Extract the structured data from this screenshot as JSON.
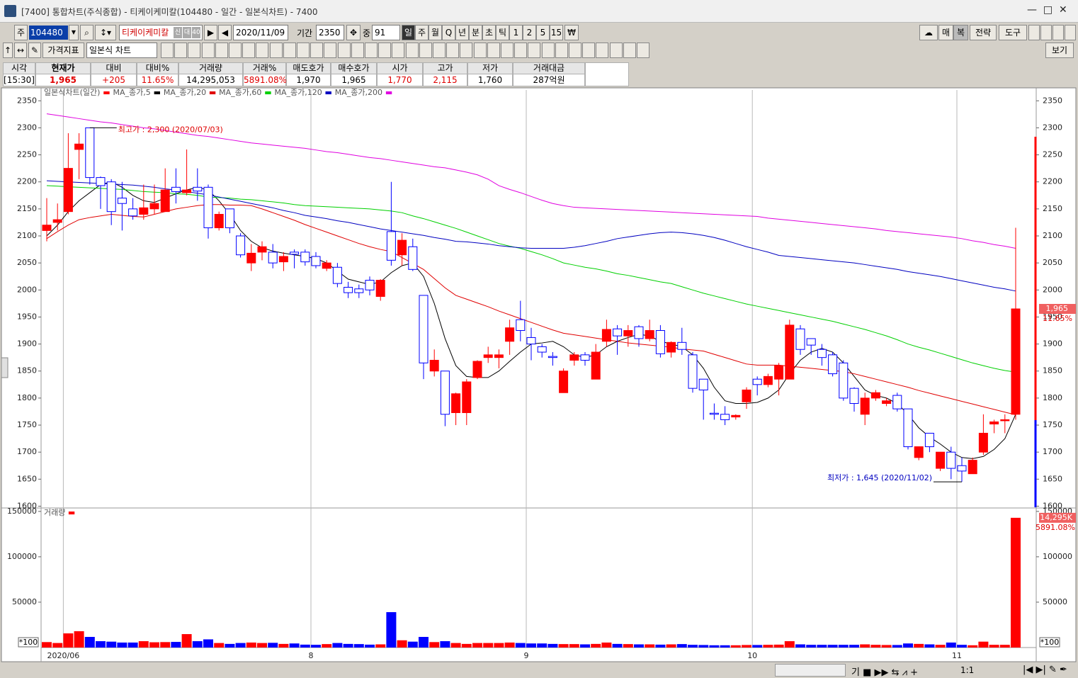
{
  "window": {
    "title": "[7400] 통합차트(주식종합) - 티케이케미칼(104480 - 일간 - 일본식차트) - 7400"
  },
  "toolbar": {
    "market": "주",
    "code": "104480",
    "name": "티케이케미칼",
    "badges": [
      "신",
      "대",
      "40"
    ],
    "date": "2020/11/09",
    "period_label": "기간",
    "period": "2350",
    "count_label": "중",
    "count": "91",
    "periods": [
      "일",
      "주",
      "월",
      "Q",
      "년",
      "분",
      "초",
      "틱",
      "1",
      "2",
      "5",
      "15"
    ],
    "right_buttons": [
      "매",
      "복",
      "전략",
      "도구"
    ],
    "indicator": "가격지표",
    "chart_style": "일본식 차트",
    "view": "보기",
    "zoom": "1:1"
  },
  "quote": {
    "headers": [
      "시각",
      "현재가",
      "대비",
      "대비%",
      "거래량",
      "거래%",
      "매도호가",
      "매수호가",
      "시가",
      "고가",
      "저가",
      "거래대금"
    ],
    "values": [
      "[15:30]",
      "1,965",
      "+205",
      "11.65%",
      "14,295,053",
      "5891.08%",
      "1,970",
      "1,965",
      "1,770",
      "2,115",
      "1,760",
      "287억원"
    ]
  },
  "chart_data": {
    "type": "candlestick",
    "title": "일본식차트(일간)",
    "categories": [
      null,
      null,
      "2020/06",
      null,
      null,
      null,
      null,
      null,
      null,
      null,
      null,
      null,
      null,
      null,
      null,
      null,
      null,
      null,
      null,
      null,
      null,
      null,
      null,
      null,
      null,
      "8",
      null,
      null,
      null,
      null,
      null,
      null,
      null,
      null,
      null,
      null,
      null,
      null,
      null,
      null,
      null,
      null,
      null,
      null,
      null,
      "9",
      null,
      null,
      null,
      null,
      null,
      null,
      null,
      null,
      null,
      null,
      null,
      null,
      null,
      null,
      null,
      null,
      null,
      null,
      null,
      null,
      "10",
      null,
      null,
      null,
      null,
      null,
      null,
      null,
      null,
      null,
      null,
      null,
      null,
      null,
      null,
      null,
      null,
      null,
      null,
      "11",
      null,
      null,
      null,
      null,
      null
    ],
    "open": [
      2110,
      2125,
      2145,
      2260,
      2300,
      2208,
      2200,
      2170,
      2150,
      2140,
      2150,
      2145,
      2190,
      2180,
      2190,
      2190,
      2115,
      2150,
      2100,
      2050,
      2070,
      2070,
      2052,
      2070,
      2070,
      2062,
      2040,
      2042,
      2005,
      2002,
      2018,
      1988,
      2108,
      2065,
      2080,
      1990,
      1850,
      1850,
      1773,
      1773,
      1838,
      1875,
      1875,
      1905,
      1945,
      1912,
      1895,
      1877,
      1810,
      1870,
      1880,
      1835,
      1905,
      1928,
      1915,
      1932,
      1910,
      1925,
      1885,
      1903,
      1880,
      1835,
      1772,
      1770,
      1765,
      1793,
      1835,
      1825,
      1835,
      1835,
      1928,
      1910,
      1890,
      1880,
      1865,
      1818,
      1770,
      1800,
      1790,
      1805,
      1780,
      1690,
      1735,
      1670,
      1700,
      1675,
      1660,
      1700,
      1752,
      1758,
      1770
    ],
    "high": [
      2170,
      2160,
      2290,
      2290,
      2300,
      2210,
      2205,
      2200,
      2170,
      2195,
      2195,
      2225,
      2225,
      2260,
      2225,
      2195,
      2145,
      2150,
      2105,
      2085,
      2090,
      2085,
      2070,
      2075,
      2075,
      2070,
      2055,
      2050,
      2015,
      2010,
      2025,
      2020,
      2200,
      2105,
      2095,
      1990,
      1890,
      1850,
      1810,
      1835,
      1870,
      1895,
      1890,
      1945,
      1980,
      1930,
      1900,
      1885,
      1855,
      1885,
      1885,
      1900,
      1945,
      1935,
      1935,
      1935,
      1945,
      1935,
      1905,
      1930,
      1885,
      1835,
      1790,
      1785,
      1770,
      1820,
      1840,
      1845,
      1865,
      1945,
      1935,
      1910,
      1900,
      1885,
      1870,
      1820,
      1810,
      1815,
      1800,
      1810,
      1780,
      1710,
      1735,
      1700,
      1710,
      1690,
      1690,
      1770,
      1760,
      1770,
      2115
    ],
    "low": [
      2090,
      2110,
      2140,
      2205,
      2195,
      2150,
      2120,
      2110,
      2130,
      2130,
      2140,
      2145,
      2160,
      2175,
      2165,
      2095,
      2110,
      2105,
      2060,
      2035,
      2055,
      2040,
      2035,
      2040,
      2045,
      2040,
      2035,
      2005,
      1985,
      1985,
      1990,
      1980,
      2045,
      2045,
      2035,
      1835,
      1840,
      1748,
      1750,
      1750,
      1835,
      1865,
      1855,
      1880,
      1905,
      1870,
      1875,
      1860,
      1810,
      1860,
      1860,
      1835,
      1895,
      1880,
      1895,
      1895,
      1905,
      1875,
      1875,
      1880,
      1810,
      1760,
      1760,
      1750,
      1760,
      1780,
      1805,
      1820,
      1805,
      1835,
      1880,
      1880,
      1860,
      1840,
      1795,
      1775,
      1750,
      1795,
      1785,
      1775,
      1705,
      1685,
      1700,
      1665,
      1650,
      1645,
      1660,
      1695,
      1735,
      1735,
      1760
    ],
    "close": [
      2120,
      2130,
      2225,
      2270,
      2208,
      2193,
      2145,
      2160,
      2137,
      2152,
      2160,
      2185,
      2182,
      2185,
      2183,
      2115,
      2140,
      2115,
      2065,
      2068,
      2080,
      2050,
      2062,
      2066,
      2052,
      2045,
      2050,
      2012,
      1995,
      1995,
      2000,
      2018,
      2055,
      2092,
      2038,
      1865,
      1870,
      1770,
      1808,
      1830,
      1868,
      1880,
      1880,
      1930,
      1925,
      1900,
      1885,
      1875,
      1850,
      1880,
      1870,
      1885,
      1927,
      1915,
      1925,
      1910,
      1925,
      1882,
      1903,
      1890,
      1818,
      1815,
      1770,
      1760,
      1768,
      1815,
      1825,
      1840,
      1860,
      1935,
      1890,
      1898,
      1875,
      1845,
      1800,
      1790,
      1800,
      1810,
      1795,
      1780,
      1710,
      1710,
      1710,
      1700,
      1670,
      1665,
      1685,
      1735,
      1756,
      1760,
      1965
    ],
    "up_color": "#ff0000",
    "down_color": "#0000ff",
    "ylim": [
      1598,
      2370
    ],
    "yticks": [
      1600,
      1650,
      1700,
      1750,
      1800,
      1850,
      1900,
      1950,
      2000,
      2050,
      2100,
      2150,
      2200,
      2250,
      2300,
      2350
    ],
    "series": [
      {
        "name": "MA_종가,5",
        "color": "#000000",
        "values": [
          2100,
          2120,
          2145,
          2165,
          2180,
          2195,
          2200,
          2190,
          2175,
          2165,
          2162,
          2170,
          2178,
          2185,
          2190,
          2185,
          2165,
          2140,
          2110,
          2090,
          2078,
          2072,
          2068,
          2065,
          2062,
          2058,
          2050,
          2035,
          2020,
          2015,
          2010,
          2015,
          2032,
          2045,
          2050,
          2025,
          1975,
          1910,
          1860,
          1840,
          1838,
          1838,
          1850,
          1868,
          1885,
          1900,
          1902,
          1905,
          1895,
          1880,
          1875,
          1880,
          1895,
          1905,
          1912,
          1918,
          1915,
          1905,
          1900,
          1895,
          1880,
          1855,
          1820,
          1795,
          1790,
          1790,
          1792,
          1800,
          1815,
          1845,
          1870,
          1885,
          1892,
          1885,
          1865,
          1840,
          1815,
          1805,
          1800,
          1790,
          1770,
          1745,
          1728,
          1715,
          1700,
          1690,
          1688,
          1692,
          1705,
          1725,
          1770
        ]
      },
      {
        "name": "MA_종가,20",
        "color": "#e00000",
        "values": [
          2095,
          2108,
          2120,
          2130,
          2134,
          2137,
          2140,
          2138,
          2136,
          2135,
          2140,
          2145,
          2150,
          2153,
          2156,
          2158,
          2158,
          2157,
          2157,
          2156,
          2150,
          2143,
          2136,
          2129,
          2121,
          2114,
          2107,
          2100,
          2093,
          2086,
          2080,
          2075,
          2071,
          2060,
          2049,
          2038,
          2021,
          2004,
          1990,
          1983,
          1976,
          1969,
          1961,
          1954,
          1947,
          1940,
          1933,
          1926,
          1920,
          1917,
          1914,
          1911,
          1908,
          1905,
          1902,
          1900,
          1898,
          1896,
          1894,
          1891,
          1889,
          1887,
          1881,
          1875,
          1869,
          1863,
          1861,
          1861,
          1861,
          1859,
          1857,
          1855,
          1853,
          1851,
          1849,
          1845,
          1840,
          1835,
          1830,
          1825,
          1820,
          1814,
          1809,
          1804,
          1799,
          1794,
          1789,
          1784,
          1779,
          1774,
          1769
        ]
      },
      {
        "name": "MA_종가,60",
        "color": "#00d000",
        "values": [
          2193,
          2192,
          2191,
          2190,
          2189,
          2188,
          2187,
          2186,
          2184,
          2182,
          2181,
          2180,
          2178,
          2177,
          2175,
          2172,
          2171,
          2170,
          2168,
          2167,
          2165,
          2163,
          2161,
          2158,
          2156,
          2155,
          2154,
          2153,
          2152,
          2151,
          2150,
          2148,
          2146,
          2143,
          2137,
          2132,
          2126,
          2120,
          2114,
          2107,
          2100,
          2093,
          2086,
          2081,
          2077,
          2071,
          2065,
          2058,
          2050,
          2046,
          2042,
          2039,
          2035,
          2030,
          2027,
          2023,
          2019,
          2015,
          2012,
          2006,
          2000,
          1994,
          1989,
          1984,
          1979,
          1974,
          1970,
          1966,
          1962,
          1958,
          1954,
          1950,
          1946,
          1942,
          1937,
          1932,
          1927,
          1921,
          1915,
          1908,
          1900,
          1894,
          1889,
          1883,
          1877,
          1871,
          1865,
          1860,
          1855,
          1851,
          1848
        ]
      },
      {
        "name": "MA_종가,120",
        "color": "#0000c0",
        "values": [
          2202,
          2201,
          2200,
          2199,
          2198,
          2197,
          2196,
          2195,
          2194,
          2192,
          2190,
          2187,
          2185,
          2182,
          2179,
          2176,
          2172,
          2168,
          2164,
          2160,
          2156,
          2152,
          2147,
          2143,
          2138,
          2135,
          2132,
          2128,
          2125,
          2121,
          2117,
          2113,
          2110,
          2107,
          2104,
          2101,
          2097,
          2094,
          2090,
          2089,
          2087,
          2085,
          2082,
          2080,
          2078,
          2077,
          2077,
          2077,
          2077,
          2079,
          2082,
          2086,
          2090,
          2095,
          2098,
          2101,
          2104,
          2106,
          2107,
          2106,
          2104,
          2101,
          2097,
          2092,
          2086,
          2080,
          2075,
          2070,
          2064,
          2062,
          2060,
          2058,
          2056,
          2054,
          2052,
          2050,
          2047,
          2044,
          2041,
          2038,
          2034,
          2031,
          2028,
          2025,
          2021,
          2017,
          2013,
          2009,
          2005,
          2002,
          1998
        ]
      },
      {
        "name": "MA_종가,200",
        "color": "#e000e0",
        "values": [
          2326,
          2323,
          2320,
          2317,
          2314,
          2311,
          2309,
          2306,
          2303,
          2300,
          2298,
          2295,
          2292,
          2289,
          2286,
          2284,
          2281,
          2278,
          2275,
          2272,
          2270,
          2268,
          2266,
          2264,
          2262,
          2259,
          2256,
          2254,
          2251,
          2248,
          2245,
          2243,
          2240,
          2237,
          2234,
          2231,
          2228,
          2226,
          2222,
          2218,
          2213,
          2205,
          2193,
          2186,
          2180,
          2173,
          2166,
          2160,
          2156,
          2153,
          2152,
          2151,
          2150,
          2149,
          2148,
          2147,
          2146,
          2145,
          2144,
          2143,
          2142,
          2141,
          2140,
          2139,
          2138,
          2137,
          2136,
          2133,
          2131,
          2129,
          2127,
          2125,
          2123,
          2121,
          2119,
          2117,
          2115,
          2113,
          2110,
          2108,
          2106,
          2104,
          2102,
          2100,
          2098,
          2095,
          2091,
          2088,
          2084,
          2081,
          2077
        ]
      }
    ],
    "max_label": "최고가 : 2,300 (2020/07/03)",
    "min_label": "최저가 : 1,645 (2020/11/02)",
    "volume": {
      "title": "거래량",
      "unit_label": "*100",
      "last_label": "14,295K",
      "ylim": [
        0,
        153000
      ],
      "yticks": [
        150000,
        100000,
        50000
      ],
      "values": [
        6000,
        5000,
        15600,
        18000,
        11700,
        7000,
        6500,
        5500,
        5500,
        7000,
        5800,
        6000,
        6200,
        14800,
        7000,
        9000,
        5000,
        4000,
        5000,
        5500,
        5000,
        5200,
        4000,
        4500,
        3200,
        3000,
        3800,
        5000,
        4000,
        3800,
        3200,
        3500,
        39000,
        8000,
        6500,
        11700,
        6000,
        7000,
        5000,
        4000,
        5000,
        5000,
        5000,
        5500,
        5000,
        4500,
        4500,
        4000,
        3800,
        3800,
        3500,
        4000,
        5500,
        4000,
        3800,
        3500,
        3500,
        3200,
        3500,
        3800,
        3000,
        2800,
        2500,
        2500,
        2500,
        2800,
        2800,
        3000,
        3200,
        7000,
        3500,
        3000,
        3000,
        3000,
        3000,
        3000,
        3500,
        3000,
        2800,
        2800,
        4500,
        4000,
        3500,
        3000,
        5500,
        3000,
        2500,
        6500,
        3000,
        3000,
        142950
      ]
    }
  }
}
